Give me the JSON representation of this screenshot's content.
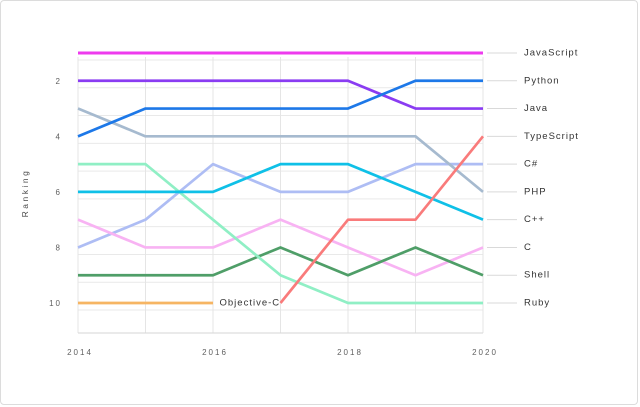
{
  "window": {
    "background": "#ffffff",
    "border_color": "#dcdcdc"
  },
  "colors": {
    "grid": "#e9e9e9",
    "vertical_grid": "#e5e5e5",
    "axis_line": "#d6d6d6",
    "leader_line": "#d9d9d9",
    "tick_text": "#5f5f5f",
    "label_text": "#333333"
  },
  "chart_data": {
    "type": "line",
    "title": "",
    "xlabel": "",
    "ylabel": "Ranking",
    "x": [
      2014,
      2015,
      2016,
      2017,
      2018,
      2019,
      2020
    ],
    "x_tick_labels": [
      "2014",
      "2016",
      "2018",
      "2020"
    ],
    "y_tick_labels": [
      "2",
      "4",
      "6",
      "8",
      "10"
    ],
    "y_axis": {
      "inverted": true,
      "range": [
        1,
        10
      ],
      "grid": true
    },
    "legend_position": "right",
    "series": [
      {
        "name": "JavaScript",
        "color": "#ee3bee",
        "start_year": 2014,
        "ranks": [
          1,
          1,
          1,
          1,
          1,
          1,
          1
        ]
      },
      {
        "name": "Python",
        "color": "#1d78e8",
        "start_year": 2014,
        "ranks": [
          4,
          3,
          3,
          3,
          3,
          2,
          2
        ]
      },
      {
        "name": "Java",
        "color": "#8a3cf2",
        "start_year": 2014,
        "ranks": [
          2,
          2,
          2,
          2,
          2,
          3,
          3
        ]
      },
      {
        "name": "TypeScript",
        "color": "#f97b7b",
        "start_year": 2017,
        "ranks": [
          10,
          7,
          7,
          4
        ]
      },
      {
        "name": "C#",
        "color": "#aebdf4",
        "start_year": 2014,
        "ranks": [
          8,
          7,
          5,
          6,
          6,
          5,
          5
        ]
      },
      {
        "name": "PHP",
        "color": "#a6bacf",
        "start_year": 2014,
        "ranks": [
          3,
          4,
          4,
          4,
          4,
          4,
          6
        ]
      },
      {
        "name": "C++",
        "color": "#0fc0e7",
        "start_year": 2014,
        "ranks": [
          6,
          6,
          6,
          5,
          5,
          6,
          7
        ]
      },
      {
        "name": "C",
        "color": "#f8b3f3",
        "start_year": 2014,
        "ranks": [
          7,
          8,
          8,
          7,
          8,
          9,
          8
        ]
      },
      {
        "name": "Shell",
        "color": "#4f9e68",
        "start_year": 2014,
        "ranks": [
          9,
          9,
          9,
          8,
          9,
          8,
          9
        ]
      },
      {
        "name": "Ruby",
        "color": "#90efc5",
        "start_year": 2014,
        "ranks": [
          5,
          5,
          7,
          9,
          10,
          10,
          10
        ]
      },
      {
        "name": "Objective-C",
        "color": "#f6b563",
        "start_year": 2014,
        "ranks": [
          10,
          10,
          10
        ],
        "inline_label": true
      }
    ],
    "right_labels": [
      "JavaScript",
      "Python",
      "Java",
      "TypeScript",
      "C#",
      "PHP",
      "C++",
      "C",
      "Shell",
      "Ruby"
    ],
    "inline_labels": [
      {
        "text": "Objective-C",
        "year": 2016,
        "rank": 10
      }
    ]
  }
}
